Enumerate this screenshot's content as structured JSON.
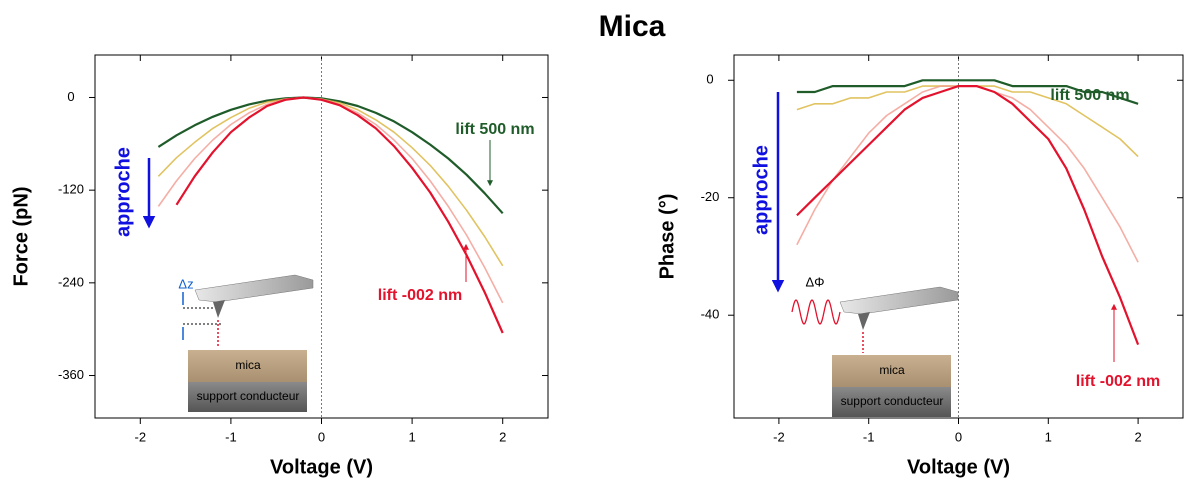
{
  "title": "Mica",
  "chart_data": [
    {
      "type": "line",
      "xlabel": "Voltage (V)",
      "ylabel": "Force (pN)",
      "xlim": [
        -2.5,
        2.5
      ],
      "xticks": [
        -2,
        -1,
        0,
        1,
        2
      ],
      "ylim": [
        -415,
        55
      ],
      "yticks": [
        0,
        -120,
        -240,
        -360
      ],
      "vline": 0,
      "annotation": "approche",
      "inset": {
        "label": "Δz",
        "layer_top": "mica",
        "layer_bottom": "support conducteur"
      },
      "x": [
        -1.8,
        -1.6,
        -1.4,
        -1.2,
        -1.0,
        -0.8,
        -0.6,
        -0.4,
        -0.2,
        0,
        0.2,
        0.4,
        0.6,
        0.8,
        1.0,
        1.2,
        1.4,
        1.6,
        1.8,
        2.0
      ],
      "series": [
        {
          "name": "lift 500 nm",
          "color": "#1f5c2a",
          "values": [
            -64,
            -49,
            -36,
            -25,
            -16,
            -9,
            -4,
            -1,
            0,
            -1,
            -5,
            -11,
            -20,
            -31,
            -45,
            -61,
            -79,
            -100,
            -124,
            -150
          ]
        },
        {
          "color": "#d9b43a",
          "values": [
            -102,
            -78,
            -58,
            -40,
            -26,
            -14,
            -6,
            -2,
            0,
            -2,
            -7,
            -16,
            -29,
            -45,
            -65,
            -88,
            -115,
            -146,
            -180,
            -218
          ]
        },
        {
          "color": "#f29a8e",
          "values": [
            -141,
            -108,
            -79,
            -55,
            -35,
            -20,
            -9,
            -2,
            0,
            -2,
            -9,
            -20,
            -35,
            -55,
            -79,
            -108,
            -141,
            -178,
            -220,
            -266
          ]
        },
        {
          "name": "lift -002 nm",
          "color": "#e3122d",
          "values": [
            null,
            -139,
            -102,
            -71,
            -45,
            -26,
            -11,
            -3,
            0,
            -3,
            -10,
            -23,
            -40,
            -63,
            -91,
            -123,
            -161,
            -204,
            -252,
            -305
          ]
        }
      ]
    },
    {
      "type": "line",
      "xlabel": "Voltage (V)",
      "ylabel": "Phase (°)",
      "xlim": [
        -2.5,
        2.5
      ],
      "xticks": [
        -2,
        -1,
        0,
        1,
        2
      ],
      "ylim": [
        -57.5,
        4.3
      ],
      "yticks": [
        0,
        -20,
        -40
      ],
      "vline": 0,
      "annotation": "approche",
      "inset": {
        "label": "ΔΦ",
        "layer_top": "mica",
        "layer_bottom": "support conducteur"
      },
      "x": [
        -1.8,
        -1.6,
        -1.4,
        -1.2,
        -1.0,
        -0.8,
        -0.6,
        -0.4,
        -0.2,
        0,
        0.2,
        0.4,
        0.6,
        0.8,
        1.0,
        1.2,
        1.4,
        1.6,
        1.8,
        2.0
      ],
      "series": [
        {
          "name": "lift 500 nm",
          "color": "#1f5c2a",
          "values": [
            -2,
            -2,
            -1,
            -1,
            -1,
            -1,
            -1,
            0,
            0,
            0,
            0,
            0,
            -1,
            -1,
            -1,
            -1,
            -2,
            -2,
            -3,
            -4
          ]
        },
        {
          "color": "#d9b43a",
          "values": [
            -5,
            -4,
            -4,
            -3,
            -3,
            -2,
            -2,
            -1,
            -1,
            -1,
            -1,
            -1,
            -2,
            -2,
            -3,
            -4,
            -6,
            -8,
            -10,
            -13
          ]
        },
        {
          "color": "#f29a8e",
          "values": [
            -28,
            -22,
            -17,
            -13,
            -9,
            -6,
            -4,
            -2,
            -1,
            -1,
            -1,
            -2,
            -3,
            -5,
            -8,
            -11,
            -15,
            -20,
            -25,
            -31
          ]
        },
        {
          "name": "lift -002 nm",
          "color": "#e3122d",
          "values": [
            -23,
            -20,
            -17,
            -14,
            -11,
            -8,
            -5,
            -3,
            -2,
            -1,
            -1,
            -2,
            -4,
            -7,
            -10,
            -15,
            -22,
            -30,
            -37,
            -45
          ]
        }
      ]
    }
  ]
}
